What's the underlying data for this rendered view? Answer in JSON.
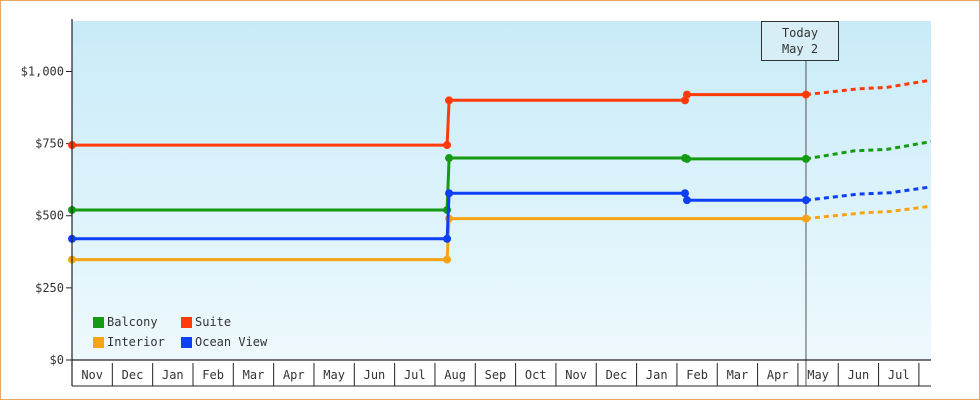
{
  "chart_data": {
    "type": "line",
    "step": true,
    "x_axis": {
      "tick_labels": [
        "Nov",
        "Dec",
        "Jan",
        "Feb",
        "Mar",
        "Apr",
        "May",
        "Jun",
        "Jul",
        "Aug",
        "Sep",
        "Oct",
        "Nov",
        "Dec",
        "Jan",
        "Feb",
        "Mar",
        "Apr",
        "May",
        "Jun",
        "Jul"
      ],
      "range": [
        0,
        21.3
      ]
    },
    "y_axis": {
      "ticks": [
        0,
        250,
        500,
        750,
        1000
      ],
      "tick_labels": [
        "$0",
        "$250",
        "$500",
        "$750",
        "$1,000"
      ],
      "range": [
        0,
        1175
      ]
    },
    "series": [
      {
        "name": "Balcony",
        "color": "#159a14",
        "points": [
          [
            0,
            520
          ],
          [
            9.3,
            520
          ],
          [
            9.35,
            700
          ],
          [
            15.2,
            700
          ],
          [
            15.25,
            697
          ],
          [
            18.2,
            697
          ]
        ],
        "markers": [
          [
            0,
            520
          ],
          [
            9.3,
            520
          ],
          [
            9.35,
            700
          ],
          [
            15.2,
            700
          ],
          [
            15.25,
            697
          ],
          [
            18.2,
            697
          ]
        ],
        "forecast": [
          [
            18.2,
            697
          ],
          [
            19.4,
            725
          ],
          [
            20.2,
            730
          ],
          [
            21.3,
            757
          ]
        ]
      },
      {
        "name": "Suite",
        "color": "#ff3b0a",
        "points": [
          [
            0,
            745
          ],
          [
            9.3,
            745
          ],
          [
            9.35,
            900
          ],
          [
            15.2,
            900
          ],
          [
            15.25,
            920
          ],
          [
            18.2,
            920
          ]
        ],
        "markers": [
          [
            0,
            745
          ],
          [
            9.3,
            745
          ],
          [
            9.35,
            900
          ],
          [
            15.2,
            900
          ],
          [
            15.25,
            920
          ],
          [
            18.2,
            920
          ]
        ],
        "forecast": [
          [
            18.2,
            920
          ],
          [
            19.5,
            940
          ],
          [
            20.2,
            945
          ],
          [
            21.3,
            970
          ]
        ]
      },
      {
        "name": "Interior",
        "color": "#f8a313",
        "points": [
          [
            0,
            348
          ],
          [
            9.3,
            348
          ],
          [
            9.35,
            490
          ],
          [
            18.2,
            490
          ]
        ],
        "markers": [
          [
            0,
            348
          ],
          [
            9.3,
            348
          ],
          [
            9.35,
            490
          ],
          [
            18.2,
            490
          ]
        ],
        "forecast": [
          [
            18.2,
            490
          ],
          [
            19.6,
            510
          ],
          [
            20.3,
            515
          ],
          [
            21.3,
            533
          ]
        ]
      },
      {
        "name": "Ocean View",
        "color": "#0d3ff5",
        "points": [
          [
            0,
            420
          ],
          [
            9.3,
            420
          ],
          [
            9.35,
            578
          ],
          [
            15.2,
            578
          ],
          [
            15.25,
            554
          ],
          [
            18.2,
            554
          ]
        ],
        "markers": [
          [
            0,
            420
          ],
          [
            9.3,
            420
          ],
          [
            9.35,
            578
          ],
          [
            15.2,
            578
          ],
          [
            15.25,
            554
          ],
          [
            18.2,
            554
          ]
        ],
        "forecast": [
          [
            18.2,
            554
          ],
          [
            19.5,
            575
          ],
          [
            20.3,
            580
          ],
          [
            21.3,
            600
          ]
        ]
      }
    ],
    "today_marker": {
      "x": 18.2,
      "line1": "Today",
      "line2": "May 2"
    },
    "legend_position": "bottom-left",
    "background": {
      "top": "#c8ebf8",
      "bottom": "#eef9fd"
    }
  }
}
